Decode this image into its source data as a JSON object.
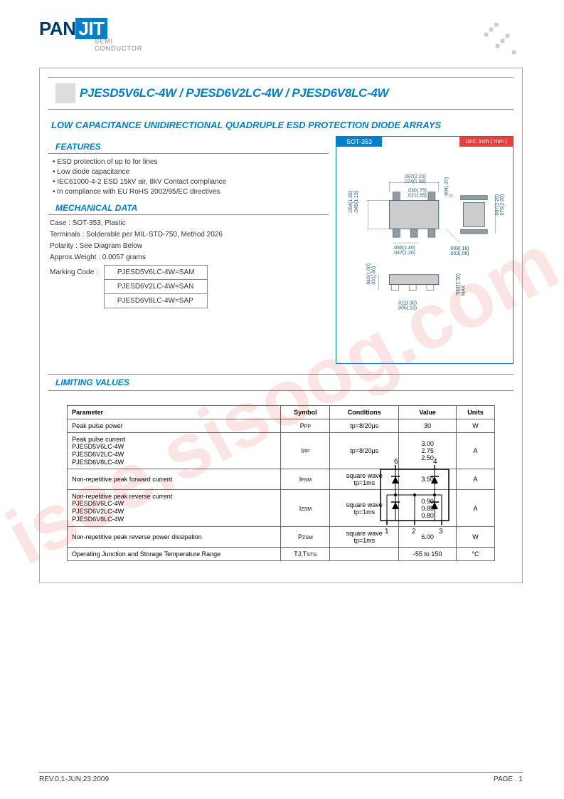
{
  "logo": {
    "pan": "PAN",
    "jit": "JIT",
    "sub1": "SEMI",
    "sub2": "CONDUCTOR"
  },
  "title": "PJESD5V6LC-4W / PJESD6V2LC-4W / PJESD6V8LC-4W",
  "subtitle": "LOW CAPACITANCE UNIDIRECTIONAL QUADRUPLE ESD PROTECTION DIODE ARRAYS",
  "package": {
    "name": "SOT-353",
    "unit_label": "Unit: inch ( mm )",
    "dims": {
      "d1": ".087(2.20)",
      "d2": ".074(1.90)",
      "d3": ".030(.75)",
      "d4": ".021(.55)",
      "d5": ".054(1.35)",
      "d6": ".045(1.15)",
      "d7": ".004(.10)",
      "d8": "0",
      "d9": ".087(2.20)",
      "d10": ".076(2.00)",
      "d11": ".056(1.40)",
      "d12": ".047(1.20)",
      "d13": ".008(.18)",
      "d14": ".003(.08)",
      "d15": ".040(1.00)",
      "d16": ".031(.80)",
      "d17": ".012(.30)",
      "d18": ".005(.15)",
      "d19": ".044(1.10)",
      "d20": "MAX"
    }
  },
  "sections": {
    "features": "FEATURES",
    "mechanical": "MECHANICAL DATA",
    "limiting": "LIMITING  VALUES"
  },
  "features": [
    "ESD protection of up to for lines",
    "Low diode capacitance",
    "IEC61000-4-2 ESD 15kV air, 8kV Contact compliance",
    "In compliance with EU RoHS 2002/95/EC directives"
  ],
  "mechanical": {
    "case": "Case : SOT-353, Plastic",
    "terminals": "Terminals : Solderable per MIL-STD-750, Method 2026",
    "polarity": "Polarity : See Diagram Below",
    "weight": "Approx.Weight : 0.0057 grams",
    "marking_label": "Marking Code :",
    "markings": [
      "PJESD5V6LC-4W=SAM",
      "PJESD6V2LC-4W=SAN",
      "PJESD6V8LC-4W=SAP"
    ]
  },
  "limits": {
    "headers": [
      "Parameter",
      "Symbol",
      "Conditions",
      "Value",
      "Units"
    ],
    "rows": [
      {
        "param": "Peak pulse power",
        "symbol": "P",
        "sub": "PP",
        "cond": "tp=8/20μs",
        "value": "30",
        "unit": "W"
      },
      {
        "param": "Peak pulse current",
        "sublines": [
          "PJESD5V6LC-4W",
          "PJESD6V2LC-4W",
          "PJESD6V8LC-4W"
        ],
        "symbol": "I",
        "sub": "PP",
        "cond": "tp=8/20μs",
        "value": "3.00\n2.75\n2.50",
        "unit": "A"
      },
      {
        "param": "Non-repetitive peak forward current",
        "symbol": "I",
        "sub": "FSM",
        "cond": "square wave\ntp=1ms",
        "value": "3.50",
        "unit": "A"
      },
      {
        "param": "Non-repetitive peak reverse current",
        "sublines": [
          "PJESD5V6LC-4W",
          "PJESD6V2LC-4W",
          "PJESD6V8LC-4W"
        ],
        "symbol": "I",
        "sub": "ZSM",
        "cond": "square wave\ntp=1ms",
        "value": "0.90\n0.85\n0.80",
        "unit": "A"
      },
      {
        "param": "Non-repetitive peak reverse power dissipation",
        "symbol": "P",
        "sub": "ZSM",
        "cond": "square wave\ntp=1ms",
        "value": "6.00",
        "unit": "W"
      },
      {
        "param": "Operating Junction and Storage Temperature Range",
        "symbol": "TJ,T",
        "sub": "STG",
        "cond": "",
        "value": "-55 to 150",
        "unit": "°C"
      }
    ]
  },
  "circuit": {
    "pins": [
      "6",
      "4",
      "1",
      "2",
      "3"
    ]
  },
  "footer": {
    "rev": "REV.0.1-JUN.23.2009",
    "page": "PAGE  . 1"
  },
  "watermark": "isee.sisoog.com",
  "colors": {
    "brand_blue": "#0080c8",
    "brand_dark": "#003a66",
    "border": "#888888",
    "text": "#333333",
    "red_label": "#e84040",
    "watermark": "rgba(220,50,50,0.13)"
  }
}
